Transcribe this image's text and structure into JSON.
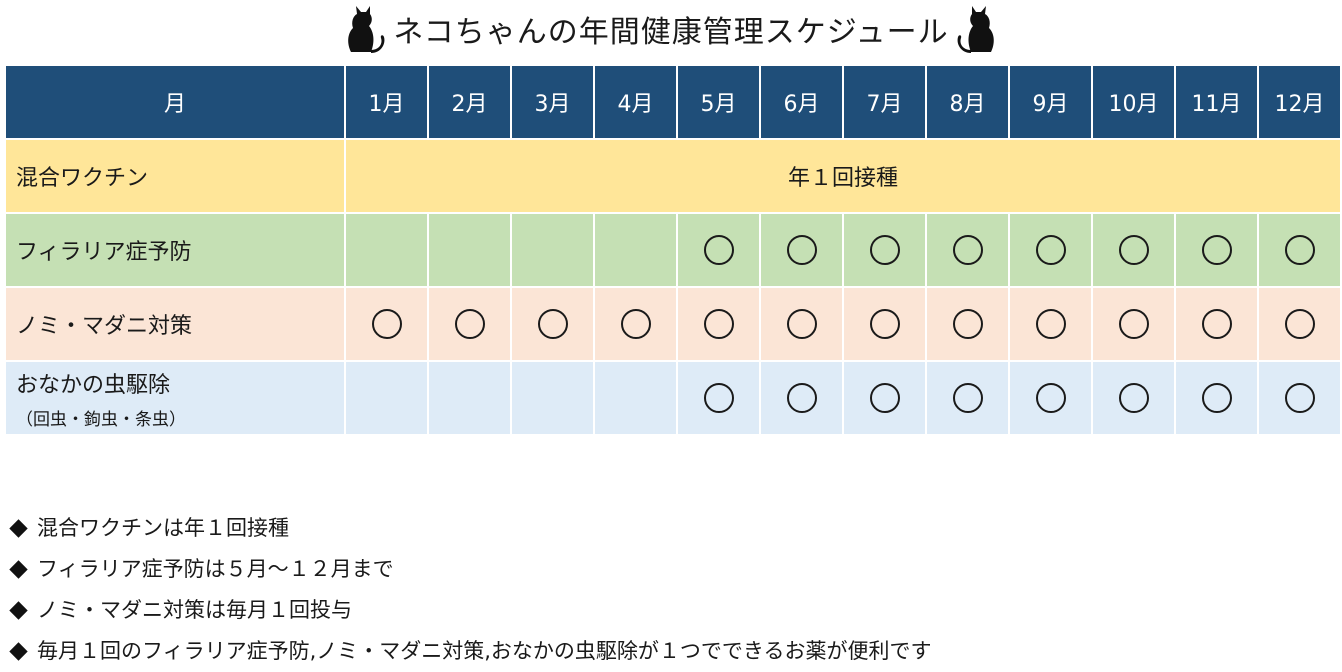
{
  "title": "ネコちゃんの年間健康管理スケジュール",
  "header": {
    "label": "月",
    "months": [
      "1月",
      "2月",
      "3月",
      "4月",
      "5月",
      "6月",
      "7月",
      "8月",
      "9月",
      "10月",
      "11月",
      "12月"
    ]
  },
  "rows": {
    "vaccine": {
      "label": "混合ワクチン",
      "span_text": "年１回接種"
    },
    "filaria": {
      "label": "フィラリア症予防",
      "marked_months": [
        5,
        6,
        7,
        8,
        9,
        10,
        11,
        12
      ]
    },
    "flea": {
      "label": "ノミ・マダニ対策",
      "marked_months": [
        1,
        2,
        3,
        4,
        5,
        6,
        7,
        8,
        9,
        10,
        11,
        12
      ]
    },
    "worm": {
      "label": "おなかの虫駆除",
      "sublabel": "（回虫・鉤虫・条虫）",
      "marked_months": [
        5,
        6,
        7,
        8,
        9,
        10,
        11,
        12
      ]
    }
  },
  "notes": [
    "混合ワクチンは年１回接種",
    "フィラリア症予防は５月～１２月まで",
    "ノミ・マダニ対策は毎月１回投与",
    "毎月１回のフィラリア症予防,ノミ・マダニ対策,おなかの虫駆除が１つでできるお薬が便利です"
  ],
  "colors": {
    "header_bg": "#1f4e79",
    "vaccine_bg": "#ffe699",
    "filaria_bg": "#c5e0b4",
    "flea_bg": "#fbe5d6",
    "worm_bg": "#deebf7"
  }
}
